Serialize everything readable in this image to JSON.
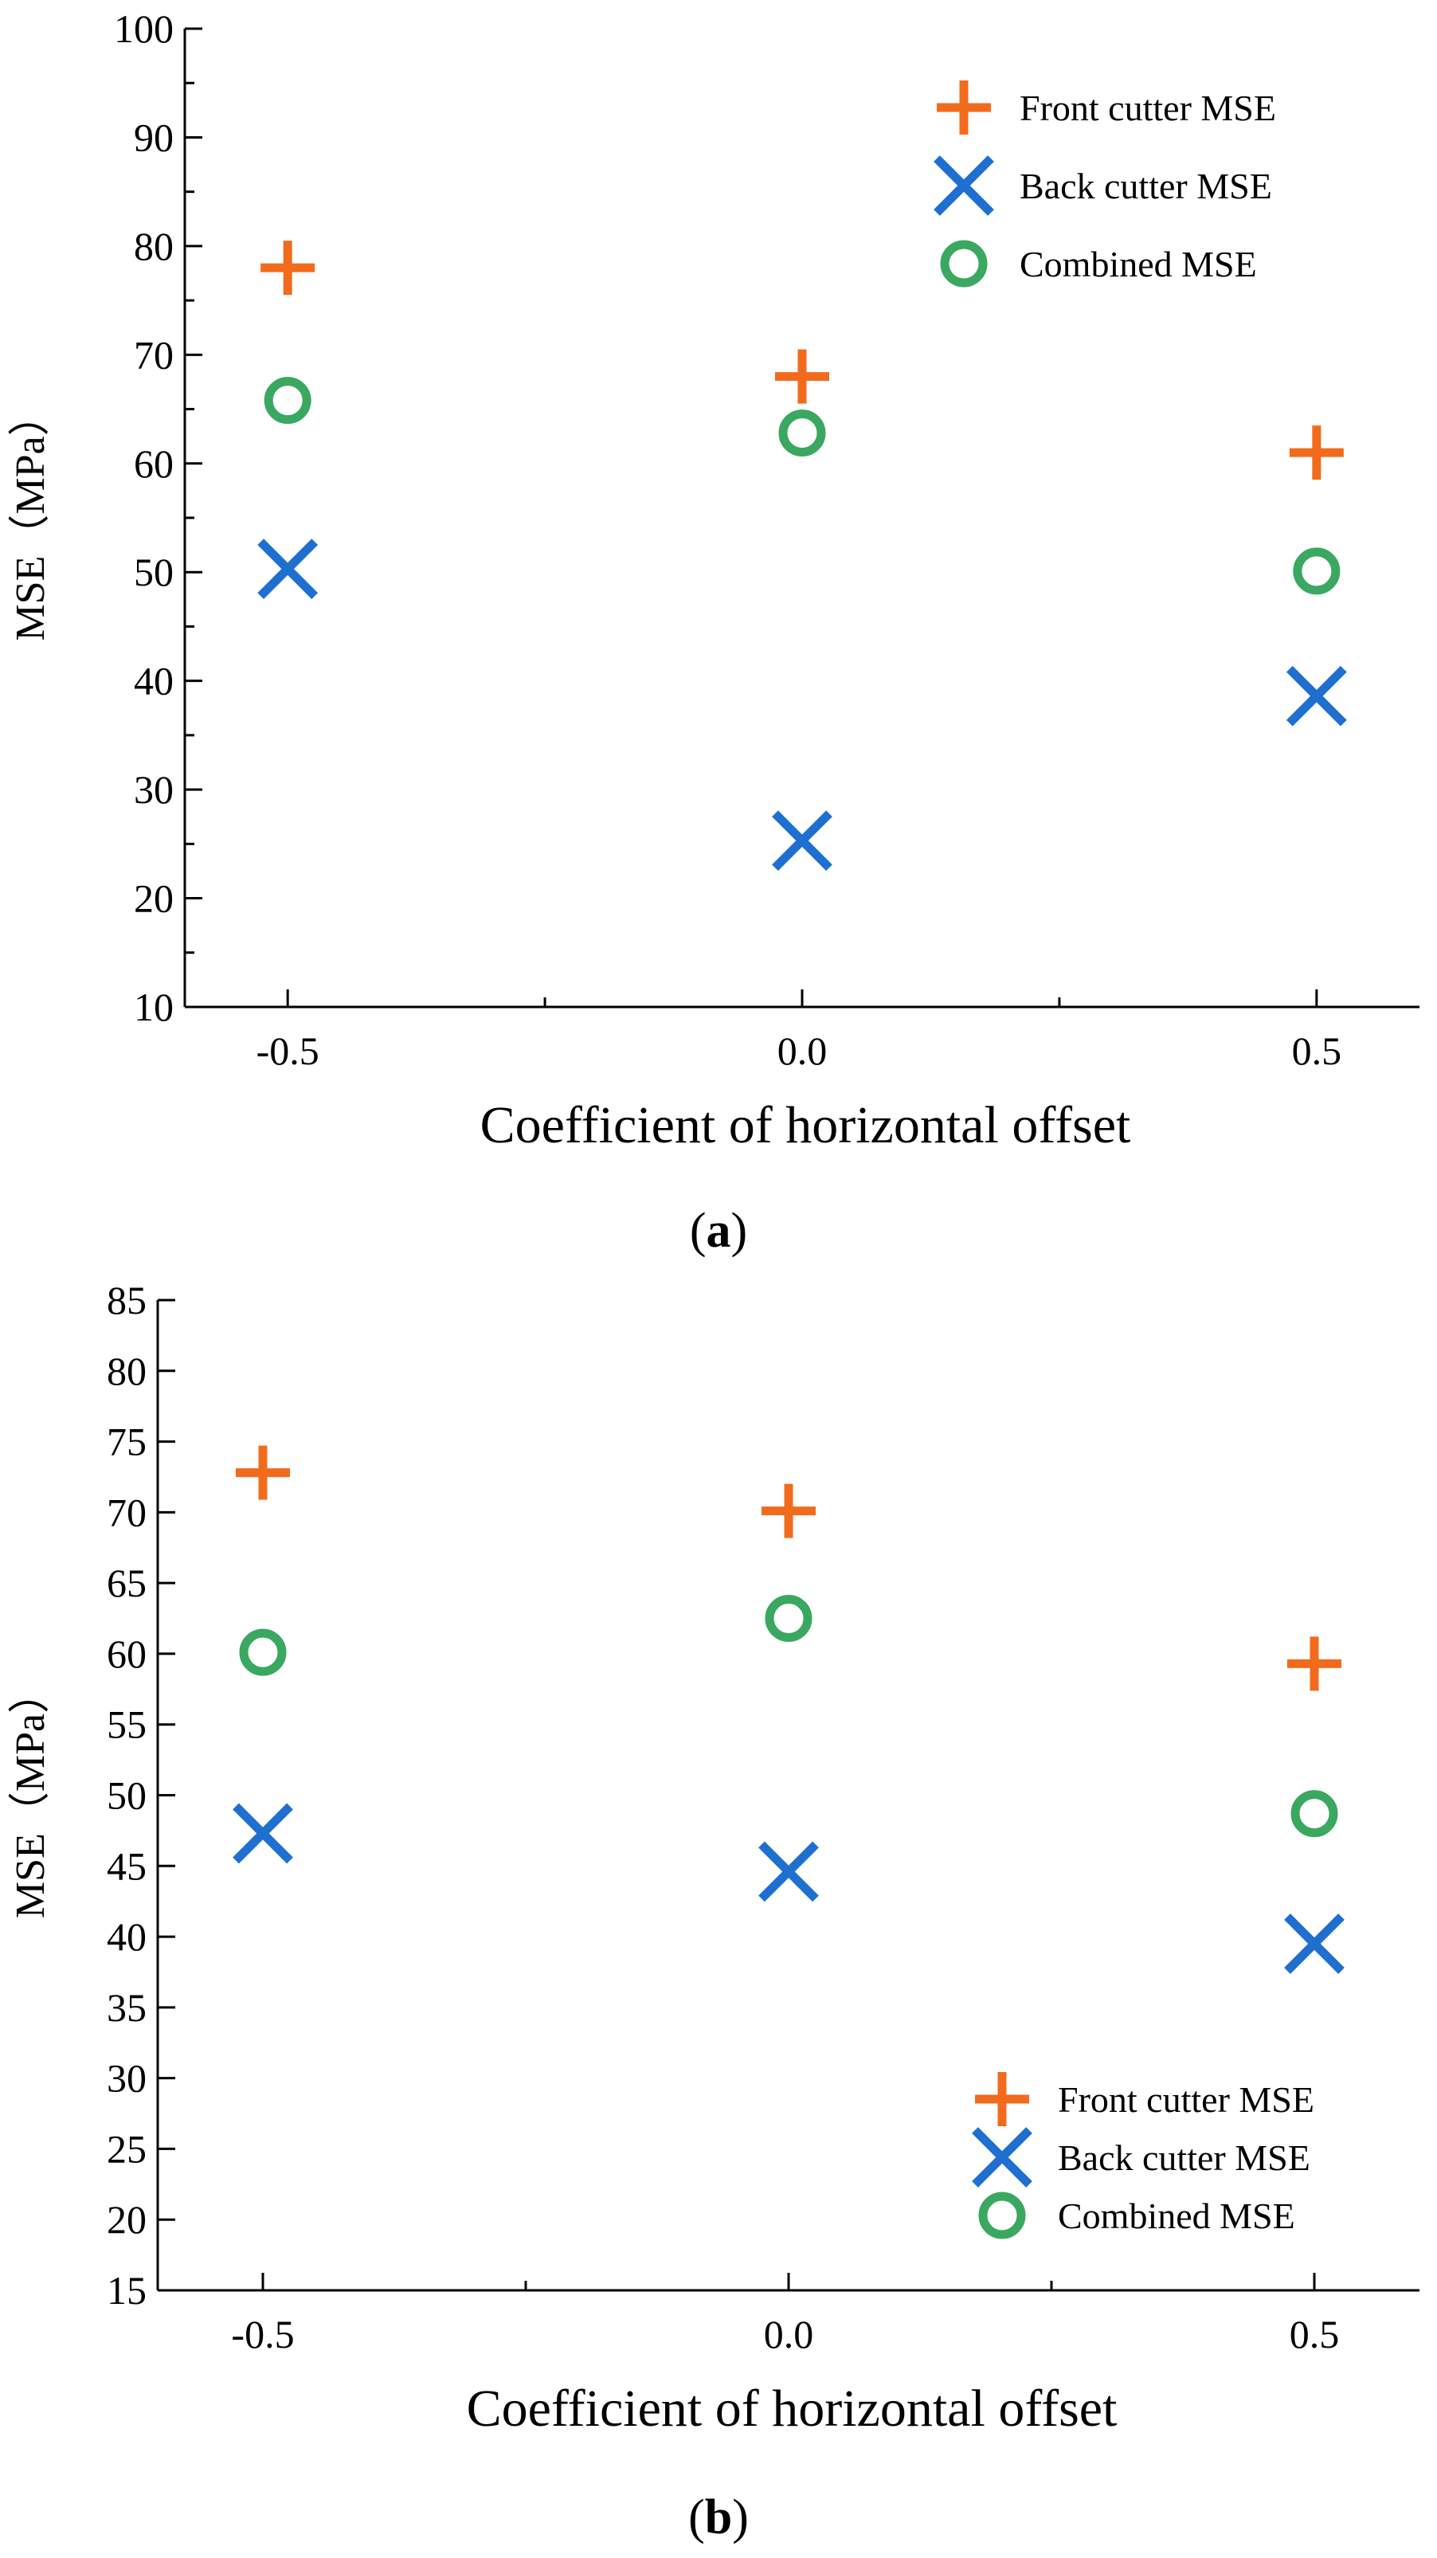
{
  "figure": {
    "caption_a_letter": "a",
    "caption_b_letter": "b"
  },
  "chart_data": [
    {
      "id": "a",
      "type": "scatter",
      "title": "",
      "xlabel": "Coefficient of horizontal offset",
      "ylabel": "MSE（MPa）",
      "x": [
        -0.5,
        0.0,
        0.5
      ],
      "xticks": [
        "-0.5",
        "0.0",
        "0.5"
      ],
      "xlim": [
        -0.6,
        0.6
      ],
      "ylim": [
        10,
        100
      ],
      "yticks": [
        10,
        20,
        30,
        40,
        50,
        60,
        70,
        80,
        90,
        100
      ],
      "legend_position": "top-right",
      "series": [
        {
          "name": "Front cutter MSE",
          "marker": "plus",
          "color": "#f26b1d",
          "values": [
            78,
            68,
            61
          ]
        },
        {
          "name": "Back cutter MSE",
          "marker": "cross",
          "color": "#1f6fd1",
          "values": [
            50.3,
            25.3,
            38.6
          ]
        },
        {
          "name": "Combined MSE",
          "marker": "circle",
          "color": "#3aa860",
          "values": [
            65.8,
            62.8,
            50.1
          ]
        }
      ]
    },
    {
      "id": "b",
      "type": "scatter",
      "title": "",
      "xlabel": "Coefficient of horizontal offset",
      "ylabel": "MSE（MPa）",
      "x": [
        -0.5,
        0.0,
        0.5
      ],
      "xticks": [
        "-0.5",
        "0.0",
        "0.5"
      ],
      "xlim": [
        -0.6,
        0.6
      ],
      "ylim": [
        15,
        85
      ],
      "yticks": [
        15,
        20,
        25,
        30,
        35,
        40,
        45,
        50,
        55,
        60,
        65,
        70,
        75,
        80,
        85
      ],
      "legend_position": "bottom-right",
      "series": [
        {
          "name": "Front cutter MSE",
          "marker": "plus",
          "color": "#f26b1d",
          "values": [
            72.8,
            70.1,
            59.3
          ]
        },
        {
          "name": "Back cutter MSE",
          "marker": "cross",
          "color": "#1f6fd1",
          "values": [
            47.3,
            44.6,
            39.5
          ]
        },
        {
          "name": "Combined MSE",
          "marker": "circle",
          "color": "#3aa860",
          "values": [
            60.1,
            62.5,
            48.7
          ]
        }
      ]
    }
  ]
}
